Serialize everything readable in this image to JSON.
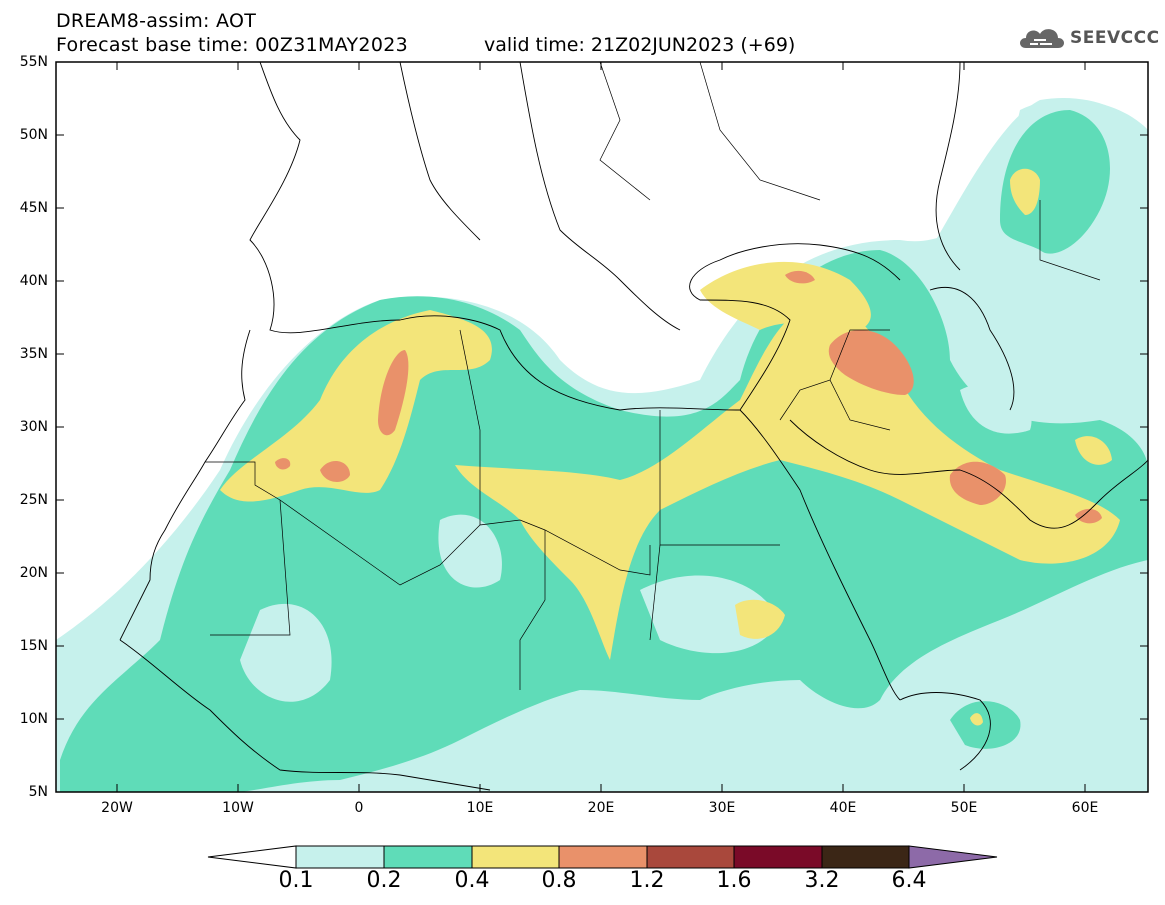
{
  "header": {
    "title": "DREAM8-assim: AOT",
    "base_time": "Forecast base time: 00Z31MAY2023",
    "valid_time": "valid time: 21Z02JUN2023 (+69)"
  },
  "logo": {
    "text": "SEEVCCC",
    "icon": "cloud-logo-icon"
  },
  "map": {
    "lat_labels": [
      "55N",
      "50N",
      "45N",
      "40N",
      "35N",
      "30N",
      "25N",
      "20N",
      "15N",
      "10N",
      "5N"
    ],
    "lon_labels": [
      "20W",
      "10W",
      "0",
      "10E",
      "20E",
      "30E",
      "40E",
      "50E",
      "60E"
    ]
  },
  "colorbar": {
    "labels": [
      "0.1",
      "0.2",
      "0.4",
      "0.8",
      "1.2",
      "1.6",
      "3.2",
      "6.4"
    ],
    "colors": [
      "#c6f1ec",
      "#5fdcb8",
      "#f3e57a",
      "#e9916a",
      "#a9483c",
      "#7a0a28",
      "#3b2616",
      "#8d6aa8"
    ]
  }
}
